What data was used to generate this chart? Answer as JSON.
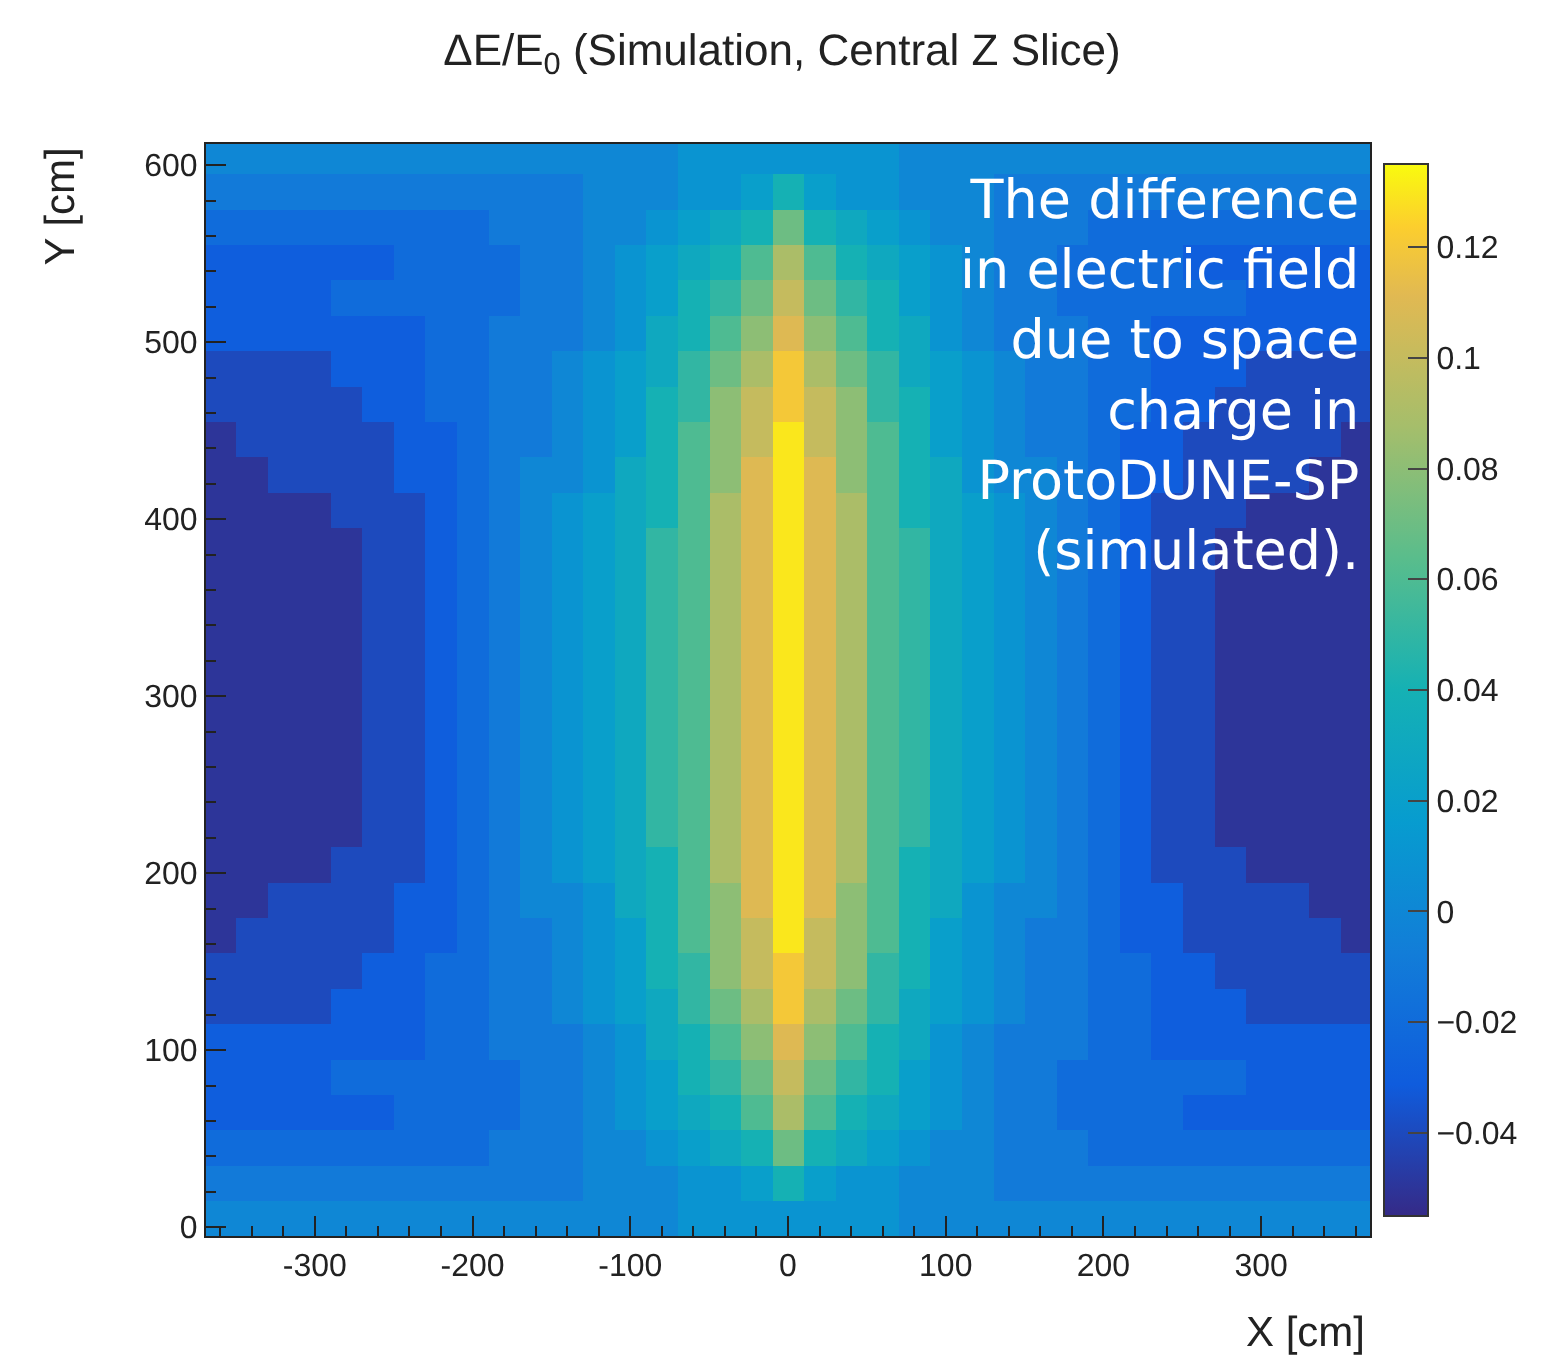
{
  "chart_data": {
    "type": "heatmap",
    "title": "ΔE/E$_{0}$ (Simulation, Central Z Slice)",
    "xlabel": "X [cm]",
    "ylabel": "Y [cm]",
    "annotations": [
      "The difference\nin electric field\ndue to space\ncharge in\nProtoDUNE-SP\n(simulated)."
    ],
    "x": [
      -360,
      -340,
      -320,
      -300,
      -280,
      -260,
      -240,
      -220,
      -200,
      -180,
      -160,
      -140,
      -120,
      -100,
      -80,
      -60,
      -40,
      -20,
      0,
      20,
      40,
      60,
      80,
      100,
      120,
      140,
      160,
      180,
      200,
      220,
      240,
      260,
      280,
      300,
      320,
      340,
      360
    ],
    "y": [
      605,
      585,
      565,
      545,
      525,
      505,
      485,
      465,
      445,
      425,
      405,
      385,
      365,
      345,
      325,
      305,
      285,
      265,
      245,
      225,
      205,
      185,
      165,
      145,
      125,
      105,
      85,
      65,
      45,
      25,
      5
    ],
    "cells": [
      [
        0,
        0,
        0,
        0,
        0,
        0,
        0,
        0,
        0,
        0,
        0,
        0,
        0,
        0,
        0,
        0.01,
        0.01,
        0.01,
        0.01,
        0.01,
        0.01,
        0.01,
        0,
        0,
        0,
        0,
        0,
        0,
        0,
        0,
        0,
        0,
        0,
        0,
        0,
        0,
        0
      ],
      [
        -0.01,
        -0.01,
        -0.01,
        -0.01,
        -0.01,
        -0.01,
        -0.01,
        -0.01,
        -0.01,
        -0.01,
        -0.01,
        -0.01,
        0,
        0,
        0,
        0.01,
        0.01,
        0.02,
        0.04,
        0.02,
        0.01,
        0.01,
        0,
        0,
        0,
        -0.01,
        -0.01,
        -0.01,
        -0.01,
        -0.01,
        -0.01,
        -0.01,
        -0.01,
        -0.01,
        -0.01,
        -0.01,
        -0.01
      ],
      [
        -0.02,
        -0.02,
        -0.02,
        -0.02,
        -0.02,
        -0.02,
        -0.02,
        -0.02,
        -0.02,
        -0.01,
        -0.01,
        -0.01,
        0,
        0,
        0.01,
        0.02,
        0.03,
        0.04,
        0.07,
        0.04,
        0.03,
        0.02,
        0.01,
        0,
        0,
        -0.01,
        -0.01,
        -0.01,
        -0.02,
        -0.02,
        -0.02,
        -0.02,
        -0.02,
        -0.02,
        -0.02,
        -0.02,
        -0.02
      ],
      [
        -0.03,
        -0.03,
        -0.03,
        -0.03,
        -0.03,
        -0.03,
        -0.02,
        -0.02,
        -0.02,
        -0.02,
        -0.01,
        -0.01,
        0,
        0.01,
        0.02,
        0.03,
        0.04,
        0.06,
        0.09,
        0.06,
        0.04,
        0.03,
        0.02,
        0.01,
        0,
        -0.01,
        -0.01,
        -0.02,
        -0.02,
        -0.02,
        -0.02,
        -0.03,
        -0.03,
        -0.03,
        -0.03,
        -0.03,
        -0.03
      ],
      [
        -0.03,
        -0.03,
        -0.03,
        -0.03,
        -0.02,
        -0.02,
        -0.02,
        -0.02,
        -0.02,
        -0.02,
        -0.01,
        -0.01,
        0,
        0.01,
        0.02,
        0.04,
        0.05,
        0.07,
        0.1,
        0.07,
        0.05,
        0.04,
        0.02,
        0.01,
        0,
        -0.01,
        -0.01,
        -0.02,
        -0.02,
        -0.02,
        -0.02,
        -0.02,
        -0.02,
        -0.03,
        -0.03,
        -0.03,
        -0.03
      ],
      [
        -0.03,
        -0.03,
        -0.03,
        -0.03,
        -0.03,
        -0.03,
        -0.03,
        -0.02,
        -0.02,
        -0.01,
        -0.01,
        -0.01,
        0,
        0.01,
        0.03,
        0.04,
        0.06,
        0.08,
        0.11,
        0.08,
        0.06,
        0.04,
        0.03,
        0.01,
        0,
        -0.01,
        -0.01,
        -0.01,
        -0.02,
        -0.02,
        -0.03,
        -0.03,
        -0.03,
        -0.03,
        -0.03,
        -0.03,
        -0.03
      ],
      [
        -0.04,
        -0.04,
        -0.04,
        -0.04,
        -0.03,
        -0.03,
        -0.03,
        -0.02,
        -0.02,
        -0.01,
        -0.01,
        0,
        0.01,
        0.02,
        0.03,
        0.05,
        0.07,
        0.09,
        0.12,
        0.09,
        0.07,
        0.05,
        0.03,
        0.02,
        0.01,
        0,
        -0.01,
        -0.01,
        -0.02,
        -0.02,
        -0.03,
        -0.03,
        -0.03,
        -0.04,
        -0.04,
        -0.04,
        -0.04
      ],
      [
        -0.04,
        -0.04,
        -0.04,
        -0.04,
        -0.04,
        -0.03,
        -0.03,
        -0.02,
        -0.02,
        -0.01,
        -0.01,
        0,
        0.01,
        0.02,
        0.04,
        0.05,
        0.08,
        0.1,
        0.12,
        0.1,
        0.08,
        0.05,
        0.04,
        0.02,
        0.01,
        0,
        -0.01,
        -0.01,
        -0.02,
        -0.02,
        -0.03,
        -0.03,
        -0.04,
        -0.04,
        -0.04,
        -0.04,
        -0.04
      ],
      [
        -0.05,
        -0.04,
        -0.04,
        -0.04,
        -0.04,
        -0.04,
        -0.03,
        -0.03,
        -0.02,
        -0.01,
        -0.01,
        0,
        0.01,
        0.02,
        0.04,
        0.06,
        0.08,
        0.1,
        0.13,
        0.1,
        0.08,
        0.06,
        0.04,
        0.02,
        0.01,
        0,
        -0.01,
        -0.01,
        -0.02,
        -0.03,
        -0.03,
        -0.04,
        -0.04,
        -0.04,
        -0.04,
        -0.04,
        -0.05
      ],
      [
        -0.05,
        -0.05,
        -0.04,
        -0.04,
        -0.04,
        -0.04,
        -0.03,
        -0.03,
        -0.02,
        -0.01,
        0,
        0,
        0.01,
        0.03,
        0.04,
        0.06,
        0.08,
        0.11,
        0.13,
        0.11,
        0.08,
        0.06,
        0.04,
        0.03,
        0.01,
        0,
        0,
        -0.01,
        -0.02,
        -0.03,
        -0.03,
        -0.04,
        -0.04,
        -0.04,
        -0.04,
        -0.05,
        -0.05
      ],
      [
        -0.05,
        -0.05,
        -0.05,
        -0.05,
        -0.04,
        -0.04,
        -0.04,
        -0.03,
        -0.02,
        -0.01,
        0,
        0.01,
        0.02,
        0.03,
        0.04,
        0.06,
        0.09,
        0.11,
        0.13,
        0.11,
        0.09,
        0.06,
        0.04,
        0.03,
        0.02,
        0.01,
        0,
        -0.01,
        -0.02,
        -0.03,
        -0.04,
        -0.04,
        -0.04,
        -0.05,
        -0.05,
        -0.05,
        -0.05
      ],
      [
        -0.05,
        -0.05,
        -0.05,
        -0.05,
        -0.05,
        -0.04,
        -0.04,
        -0.03,
        -0.02,
        -0.01,
        0,
        0.01,
        0.02,
        0.03,
        0.05,
        0.06,
        0.09,
        0.11,
        0.13,
        0.11,
        0.09,
        0.06,
        0.05,
        0.03,
        0.02,
        0.01,
        0,
        -0.01,
        -0.02,
        -0.03,
        -0.04,
        -0.04,
        -0.05,
        -0.05,
        -0.05,
        -0.05,
        -0.05
      ],
      [
        -0.05,
        -0.05,
        -0.05,
        -0.05,
        -0.05,
        -0.04,
        -0.04,
        -0.03,
        -0.02,
        -0.01,
        0,
        0.01,
        0.02,
        0.03,
        0.05,
        0.06,
        0.09,
        0.11,
        0.13,
        0.11,
        0.09,
        0.06,
        0.05,
        0.03,
        0.02,
        0.01,
        0,
        -0.01,
        -0.02,
        -0.03,
        -0.04,
        -0.04,
        -0.05,
        -0.05,
        -0.05,
        -0.05,
        -0.05
      ],
      [
        -0.05,
        -0.05,
        -0.05,
        -0.05,
        -0.05,
        -0.04,
        -0.04,
        -0.03,
        -0.02,
        -0.01,
        0,
        0.01,
        0.02,
        0.03,
        0.05,
        0.06,
        0.09,
        0.11,
        0.13,
        0.11,
        0.09,
        0.06,
        0.05,
        0.03,
        0.02,
        0.01,
        0,
        -0.01,
        -0.02,
        -0.03,
        -0.04,
        -0.04,
        -0.05,
        -0.05,
        -0.05,
        -0.05,
        -0.05
      ],
      [
        -0.05,
        -0.05,
        -0.05,
        -0.05,
        -0.05,
        -0.04,
        -0.04,
        -0.03,
        -0.02,
        -0.01,
        0,
        0.01,
        0.02,
        0.03,
        0.05,
        0.06,
        0.09,
        0.11,
        0.13,
        0.11,
        0.09,
        0.06,
        0.05,
        0.03,
        0.02,
        0.01,
        0,
        -0.01,
        -0.02,
        -0.03,
        -0.04,
        -0.04,
        -0.05,
        -0.05,
        -0.05,
        -0.05,
        -0.05
      ],
      [
        -0.05,
        -0.05,
        -0.05,
        -0.05,
        -0.05,
        -0.04,
        -0.04,
        -0.03,
        -0.02,
        -0.01,
        0,
        0.01,
        0.02,
        0.03,
        0.05,
        0.06,
        0.09,
        0.11,
        0.13,
        0.11,
        0.09,
        0.06,
        0.05,
        0.03,
        0.02,
        0.01,
        0,
        -0.01,
        -0.02,
        -0.03,
        -0.04,
        -0.04,
        -0.05,
        -0.05,
        -0.05,
        -0.05,
        -0.05
      ],
      [
        -0.05,
        -0.05,
        -0.05,
        -0.05,
        -0.05,
        -0.04,
        -0.04,
        -0.03,
        -0.02,
        -0.01,
        0,
        0.01,
        0.02,
        0.03,
        0.05,
        0.06,
        0.09,
        0.11,
        0.13,
        0.11,
        0.09,
        0.06,
        0.05,
        0.03,
        0.02,
        0.01,
        0,
        -0.01,
        -0.02,
        -0.03,
        -0.04,
        -0.04,
        -0.05,
        -0.05,
        -0.05,
        -0.05,
        -0.05
      ],
      [
        -0.05,
        -0.05,
        -0.05,
        -0.05,
        -0.05,
        -0.04,
        -0.04,
        -0.03,
        -0.02,
        -0.01,
        0,
        0.01,
        0.02,
        0.03,
        0.05,
        0.06,
        0.09,
        0.11,
        0.13,
        0.11,
        0.09,
        0.06,
        0.05,
        0.03,
        0.02,
        0.01,
        0,
        -0.01,
        -0.02,
        -0.03,
        -0.04,
        -0.04,
        -0.05,
        -0.05,
        -0.05,
        -0.05,
        -0.05
      ],
      [
        -0.05,
        -0.05,
        -0.05,
        -0.05,
        -0.05,
        -0.04,
        -0.04,
        -0.03,
        -0.02,
        -0.01,
        0,
        0.01,
        0.02,
        0.03,
        0.05,
        0.06,
        0.09,
        0.11,
        0.13,
        0.11,
        0.09,
        0.06,
        0.05,
        0.03,
        0.02,
        0.01,
        0,
        -0.01,
        -0.02,
        -0.03,
        -0.04,
        -0.04,
        -0.05,
        -0.05,
        -0.05,
        -0.05,
        -0.05
      ],
      [
        -0.05,
        -0.05,
        -0.05,
        -0.05,
        -0.05,
        -0.04,
        -0.04,
        -0.03,
        -0.02,
        -0.01,
        0,
        0.01,
        0.02,
        0.03,
        0.05,
        0.06,
        0.09,
        0.11,
        0.13,
        0.11,
        0.09,
        0.06,
        0.05,
        0.03,
        0.02,
        0.01,
        0,
        -0.01,
        -0.02,
        -0.03,
        -0.04,
        -0.04,
        -0.05,
        -0.05,
        -0.05,
        -0.05,
        -0.05
      ],
      [
        -0.05,
        -0.05,
        -0.05,
        -0.05,
        -0.04,
        -0.04,
        -0.04,
        -0.03,
        -0.02,
        -0.01,
        0,
        0.01,
        0.02,
        0.03,
        0.04,
        0.06,
        0.09,
        0.11,
        0.13,
        0.11,
        0.09,
        0.06,
        0.04,
        0.03,
        0.02,
        0.01,
        0,
        -0.01,
        -0.02,
        -0.03,
        -0.04,
        -0.04,
        -0.04,
        -0.05,
        -0.05,
        -0.05,
        -0.05
      ],
      [
        -0.05,
        -0.05,
        -0.04,
        -0.04,
        -0.04,
        -0.04,
        -0.03,
        -0.03,
        -0.02,
        -0.01,
        0,
        0,
        0.01,
        0.03,
        0.04,
        0.06,
        0.08,
        0.11,
        0.13,
        0.11,
        0.08,
        0.06,
        0.04,
        0.03,
        0.01,
        0,
        0,
        -0.01,
        -0.02,
        -0.03,
        -0.03,
        -0.04,
        -0.04,
        -0.04,
        -0.04,
        -0.05,
        -0.05
      ],
      [
        -0.05,
        -0.04,
        -0.04,
        -0.04,
        -0.04,
        -0.04,
        -0.03,
        -0.03,
        -0.02,
        -0.01,
        -0.01,
        0,
        0.01,
        0.02,
        0.04,
        0.06,
        0.08,
        0.1,
        0.13,
        0.1,
        0.08,
        0.06,
        0.04,
        0.02,
        0.01,
        0,
        -0.01,
        -0.01,
        -0.02,
        -0.03,
        -0.03,
        -0.04,
        -0.04,
        -0.04,
        -0.04,
        -0.04,
        -0.05
      ],
      [
        -0.04,
        -0.04,
        -0.04,
        -0.04,
        -0.04,
        -0.03,
        -0.03,
        -0.02,
        -0.02,
        -0.01,
        -0.01,
        0,
        0.01,
        0.02,
        0.04,
        0.05,
        0.08,
        0.1,
        0.12,
        0.1,
        0.08,
        0.05,
        0.04,
        0.02,
        0.01,
        0,
        -0.01,
        -0.01,
        -0.02,
        -0.02,
        -0.03,
        -0.03,
        -0.04,
        -0.04,
        -0.04,
        -0.04,
        -0.04
      ],
      [
        -0.04,
        -0.04,
        -0.04,
        -0.04,
        -0.03,
        -0.03,
        -0.03,
        -0.02,
        -0.02,
        -0.01,
        -0.01,
        0,
        0.01,
        0.02,
        0.03,
        0.05,
        0.07,
        0.09,
        0.12,
        0.09,
        0.07,
        0.05,
        0.03,
        0.02,
        0.01,
        0,
        -0.01,
        -0.01,
        -0.02,
        -0.02,
        -0.03,
        -0.03,
        -0.03,
        -0.04,
        -0.04,
        -0.04,
        -0.04
      ],
      [
        -0.03,
        -0.03,
        -0.03,
        -0.03,
        -0.03,
        -0.03,
        -0.03,
        -0.02,
        -0.02,
        -0.01,
        -0.01,
        -0.01,
        0,
        0.01,
        0.03,
        0.04,
        0.06,
        0.08,
        0.11,
        0.08,
        0.06,
        0.04,
        0.03,
        0.01,
        0,
        -0.01,
        -0.01,
        -0.01,
        -0.02,
        -0.02,
        -0.03,
        -0.03,
        -0.03,
        -0.03,
        -0.03,
        -0.03,
        -0.03
      ],
      [
        -0.03,
        -0.03,
        -0.03,
        -0.03,
        -0.02,
        -0.02,
        -0.02,
        -0.02,
        -0.02,
        -0.02,
        -0.01,
        -0.01,
        0,
        0.01,
        0.02,
        0.04,
        0.05,
        0.07,
        0.1,
        0.07,
        0.05,
        0.04,
        0.02,
        0.01,
        0,
        -0.01,
        -0.01,
        -0.02,
        -0.02,
        -0.02,
        -0.02,
        -0.02,
        -0.02,
        -0.03,
        -0.03,
        -0.03,
        -0.03
      ],
      [
        -0.03,
        -0.03,
        -0.03,
        -0.03,
        -0.03,
        -0.03,
        -0.02,
        -0.02,
        -0.02,
        -0.02,
        -0.01,
        -0.01,
        0,
        0.01,
        0.02,
        0.03,
        0.04,
        0.06,
        0.09,
        0.06,
        0.04,
        0.03,
        0.02,
        0.01,
        0,
        -0.01,
        -0.01,
        -0.02,
        -0.02,
        -0.02,
        -0.02,
        -0.03,
        -0.03,
        -0.03,
        -0.03,
        -0.03,
        -0.03
      ],
      [
        -0.02,
        -0.02,
        -0.02,
        -0.02,
        -0.02,
        -0.02,
        -0.02,
        -0.02,
        -0.02,
        -0.01,
        -0.01,
        -0.01,
        0,
        0,
        0.01,
        0.02,
        0.03,
        0.04,
        0.07,
        0.04,
        0.03,
        0.02,
        0.01,
        0,
        0,
        -0.01,
        -0.01,
        -0.01,
        -0.02,
        -0.02,
        -0.02,
        -0.02,
        -0.02,
        -0.02,
        -0.02,
        -0.02,
        -0.02
      ],
      [
        -0.01,
        -0.01,
        -0.01,
        -0.01,
        -0.01,
        -0.01,
        -0.01,
        -0.01,
        -0.01,
        -0.01,
        -0.01,
        -0.01,
        0,
        0,
        0,
        0.01,
        0.01,
        0.02,
        0.04,
        0.02,
        0.01,
        0.01,
        0,
        0,
        0,
        -0.01,
        -0.01,
        -0.01,
        -0.01,
        -0.01,
        -0.01,
        -0.01,
        -0.01,
        -0.01,
        -0.01,
        -0.01,
        -0.01
      ],
      [
        0,
        0,
        0,
        0,
        0,
        0,
        0,
        0,
        0,
        0,
        0,
        0,
        0,
        0,
        0,
        0.01,
        0.01,
        0.01,
        0.01,
        0.01,
        0.01,
        0.01,
        0,
        0,
        0,
        0,
        0,
        0,
        0,
        0,
        0,
        0,
        0,
        0,
        0,
        0,
        0
      ]
    ],
    "xlim": [
      -369,
      369
    ],
    "ylim": [
      -5,
      612
    ],
    "xticks": [
      -300,
      -200,
      -100,
      0,
      100,
      200,
      300
    ],
    "yticks": [
      0,
      100,
      200,
      300,
      400,
      500,
      600
    ],
    "clim": [
      -0.055,
      0.135
    ],
    "cticks": [
      {
        "value": -0.04,
        "label": "−0.04"
      },
      {
        "value": -0.02,
        "label": "−0.02"
      },
      0,
      0.02,
      0.04,
      0.06,
      0.08,
      0.1,
      0.12
    ]
  }
}
